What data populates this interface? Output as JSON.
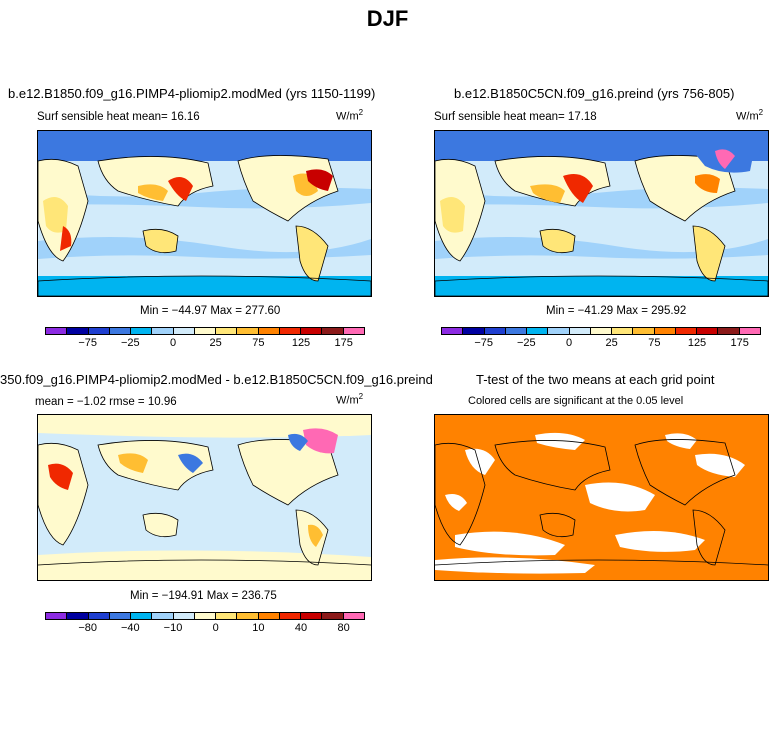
{
  "title": "DJF",
  "colors": [
    "#8c2be2",
    "#0000a0",
    "#1f3fd0",
    "#3c78e0",
    "#00b4f0",
    "#a0d2fa",
    "#d2ebfa",
    "#fffacd",
    "#ffe678",
    "#ffbe32",
    "#ff8200",
    "#f02800",
    "#c80000",
    "#8b1a1a",
    "#ff69b4"
  ],
  "panels": [
    {
      "title": "b.e12.B1850.f09_g16.PIMP4-pliomip2.modMed (yrs 1150-1199)",
      "subtitle": "Surf  sensible  heat    mean=   16.16",
      "units": "W/m",
      "units_sup": "2",
      "stats": "Min = −44.97  Max = 277.60",
      "ticks": [
        "−75",
        "−25",
        "0",
        "25",
        "75",
        "125",
        "175"
      ]
    },
    {
      "title": "b.e12.B1850C5CN.f09_g16.preind (yrs 756-805)",
      "subtitle": "Surf  sensible  heat    mean=   17.18",
      "units": "W/m",
      "units_sup": "2",
      "stats": "Min = −41.29  Max = 295.92",
      "ticks": [
        "−75",
        "−25",
        "0",
        "25",
        "75",
        "125",
        "175"
      ]
    },
    {
      "title": "350.f09_g16.PIMP4-pliomip2.modMed - b.e12.B1850C5CN.f09_g16.preind",
      "subtitle": "mean =    −1.02     rmse =    10.96",
      "units": "W/m",
      "units_sup": "2",
      "stats": "Min = −194.91  Max = 236.75",
      "ticks": [
        "−80",
        "−40",
        "−10",
        "0",
        "10",
        "40",
        "80"
      ]
    },
    {
      "title": "T-test of the two means at each grid point",
      "subtitle": "Colored cells are significant at the 0.05 level"
    }
  ]
}
